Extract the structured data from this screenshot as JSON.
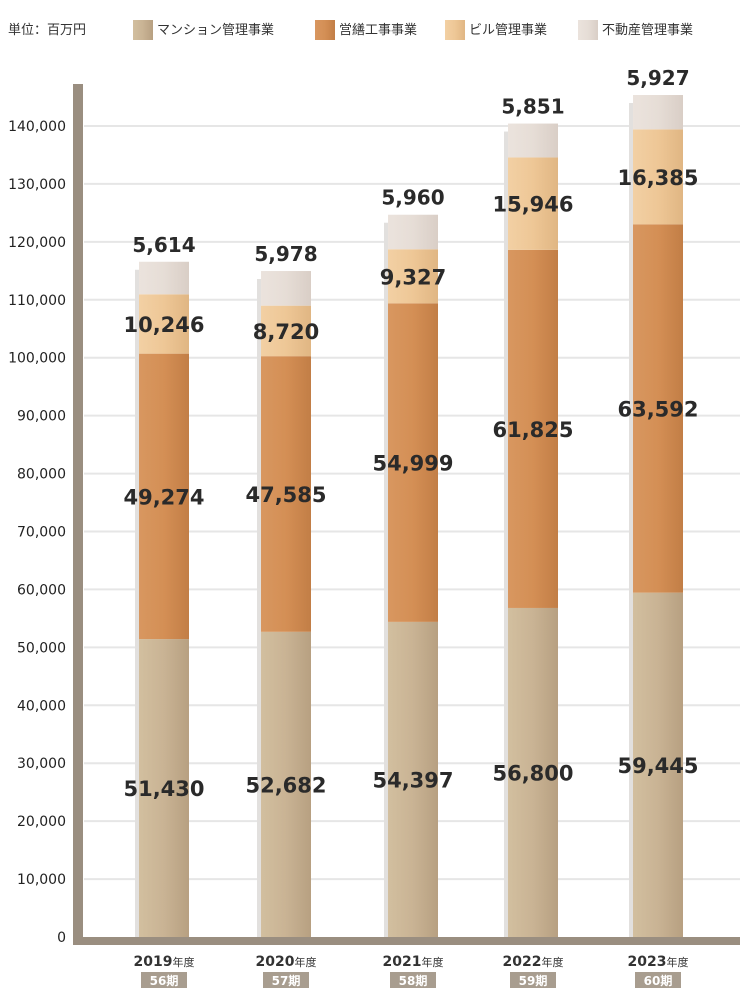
{
  "unit_label": "単位：百万円",
  "colors": {
    "mansion": "#c4ae90",
    "repair": "#d08c52",
    "building": "#ecc595",
    "realestate": "#e4dad3",
    "axis": "#9a8e80",
    "grid": "#e6e6e6",
    "period_badge": "#a89d8f"
  },
  "chart_data": {
    "type": "bar",
    "stacked": true,
    "categories": [
      "2019",
      "2020",
      "2021",
      "2022",
      "2023"
    ],
    "category_suffix": "年度",
    "periods": [
      "56期",
      "57期",
      "58期",
      "59期",
      "60期"
    ],
    "series": [
      {
        "name": "マンション管理事業",
        "key": "mansion",
        "values": [
          51430,
          52682,
          54397,
          56800,
          59445
        ]
      },
      {
        "name": "営繕工事事業",
        "key": "repair",
        "values": [
          49274,
          47585,
          54999,
          61825,
          63592
        ]
      },
      {
        "name": "ビル管理事業",
        "key": "building",
        "values": [
          10246,
          8720,
          9327,
          15946,
          16385
        ]
      },
      {
        "name": "不動産管理事業",
        "key": "realestate",
        "values": [
          5614,
          5978,
          5960,
          5851,
          5927
        ]
      }
    ],
    "value_labels": [
      [
        "51,430",
        "52,682",
        "54,397",
        "56,800",
        "59,445"
      ],
      [
        "49,274",
        "47,585",
        "54,999",
        "61,825",
        "63,592"
      ],
      [
        "10,246",
        "8,720",
        "9,327",
        "15,946",
        "16,385"
      ],
      [
        "5,614",
        "5,978",
        "5,960",
        "5,851",
        "5,927"
      ]
    ],
    "ylim": [
      0,
      140000
    ],
    "yticks": [
      0,
      10000,
      20000,
      30000,
      40000,
      50000,
      60000,
      70000,
      80000,
      90000,
      100000,
      110000,
      120000,
      130000,
      140000
    ],
    "ytick_labels": [
      "0",
      "10,000",
      "20,000",
      "30,000",
      "40,000",
      "50,000",
      "60,000",
      "70,000",
      "80,000",
      "90,000",
      "100,000",
      "110,000",
      "120,000",
      "130,000",
      "140,000"
    ],
    "grid": true,
    "legend_position": "top"
  }
}
